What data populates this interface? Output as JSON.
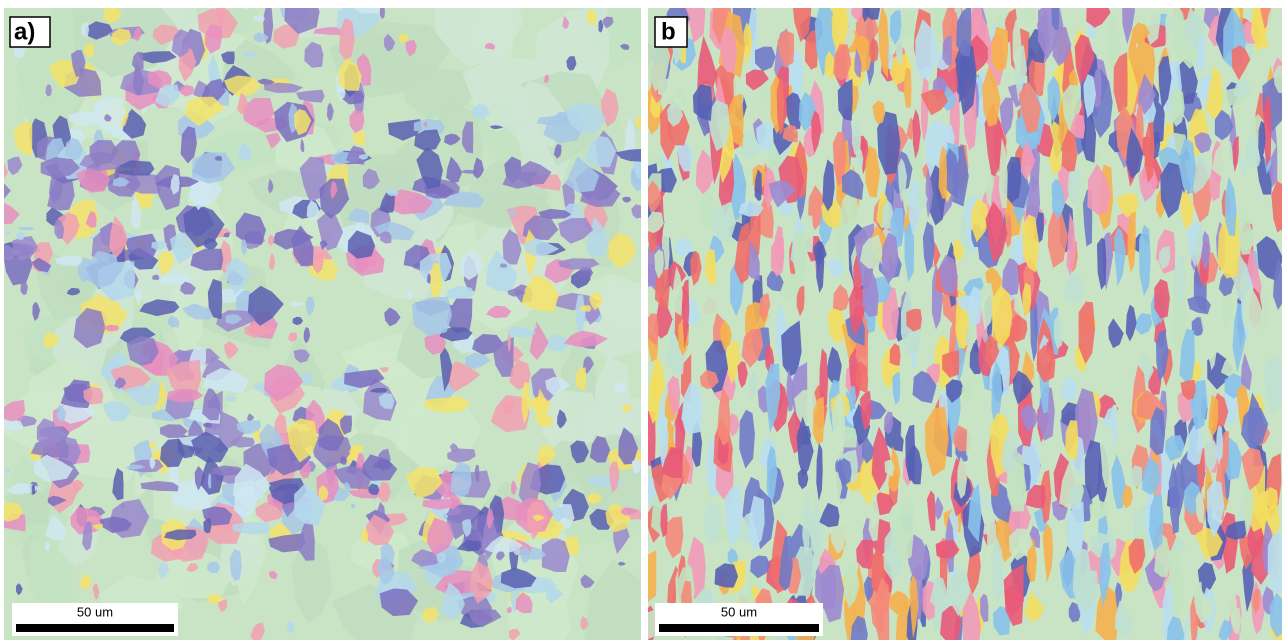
{
  "panels": [
    {
      "label": "a)",
      "scale_bar": "50 um"
    },
    {
      "label": "b",
      "scale_bar": "50 um"
    }
  ]
}
